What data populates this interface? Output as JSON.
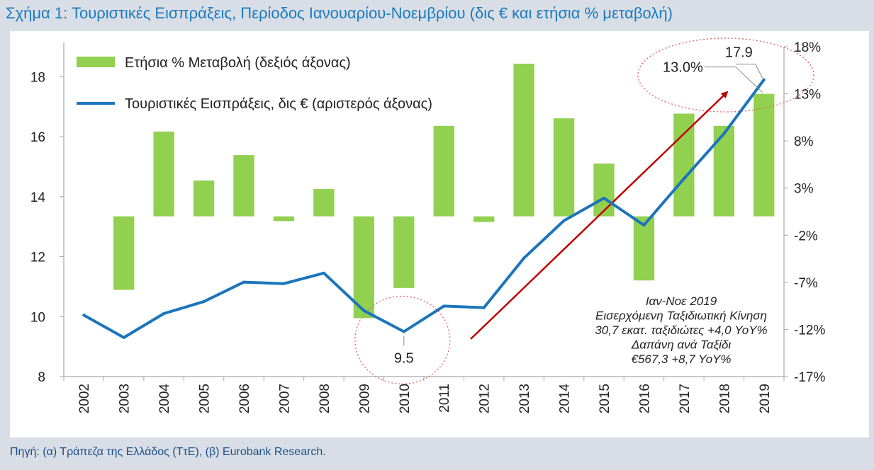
{
  "title": "Σχήμα 1: Τουριστικές Εισπράξεις, Περίοδος Ιανουαρίου-Νοεμβρίου (δις € και ετήσια % μεταβολή)",
  "source": "Πηγή: (α) Τράπεζα της Ελλάδος (ΤτΕ), (β) Eurobank Research.",
  "colors": {
    "bar": "#92d050",
    "line": "#1b75bc",
    "arrow": "#c00000",
    "circle": "#e06060",
    "title": "#1b7bbf"
  },
  "chart_data": {
    "type": "bar+line",
    "categories": [
      "2002",
      "2003",
      "2004",
      "2005",
      "2006",
      "2007",
      "2008",
      "2009",
      "2010",
      "2011",
      "2012",
      "2013",
      "2014",
      "2015",
      "2016",
      "2017",
      "2018",
      "2019"
    ],
    "series": [
      {
        "name": "Ετήσια % Μεταβολή (δεξιός άξονας)",
        "type": "bar",
        "axis": "right",
        "values": [
          0,
          -7.8,
          9.0,
          3.8,
          6.5,
          -0.5,
          2.9,
          -10.8,
          -7.6,
          9.6,
          -0.6,
          16.2,
          10.4,
          5.6,
          -6.8,
          10.9,
          9.6,
          13.0
        ]
      },
      {
        "name": "Τουριστικές Εισπράξεις, δις € (αριστερός άξονας)",
        "type": "line",
        "axis": "left",
        "values": [
          10.05,
          9.3,
          10.1,
          10.5,
          11.15,
          11.1,
          11.45,
          10.2,
          9.5,
          10.35,
          10.3,
          11.95,
          13.2,
          13.95,
          13.05,
          14.6,
          16.1,
          17.9
        ]
      }
    ],
    "left_axis": {
      "min": 8,
      "max": 19.0,
      "ticks": [
        8,
        10,
        12,
        14,
        16,
        18
      ]
    },
    "right_axis": {
      "min": -17,
      "max": 18,
      "ticks": [
        -17,
        -12,
        -7,
        -2,
        3,
        8,
        13,
        18
      ],
      "tick_labels": [
        "-17%",
        "-12%",
        "-7%",
        "-2%",
        "3%",
        "8%",
        "13%",
        "18%"
      ]
    },
    "annotations": {
      "low_label": "9.5",
      "high_label": "17.9",
      "pct_label": "13.0%"
    },
    "callout": {
      "line1": "Ιαν-Νοε 2019",
      "line2": "Εισερχόμενη Ταξιδιωτική Κίνηση",
      "line3": "30,7 εκατ. ταξιδιώτες +4,0 YoY%",
      "line4": "Δαπάνη ανά Ταξίδι",
      "line5": "€567,3 +8,7 YoY%"
    },
    "legend": {
      "position": "top-left"
    }
  }
}
